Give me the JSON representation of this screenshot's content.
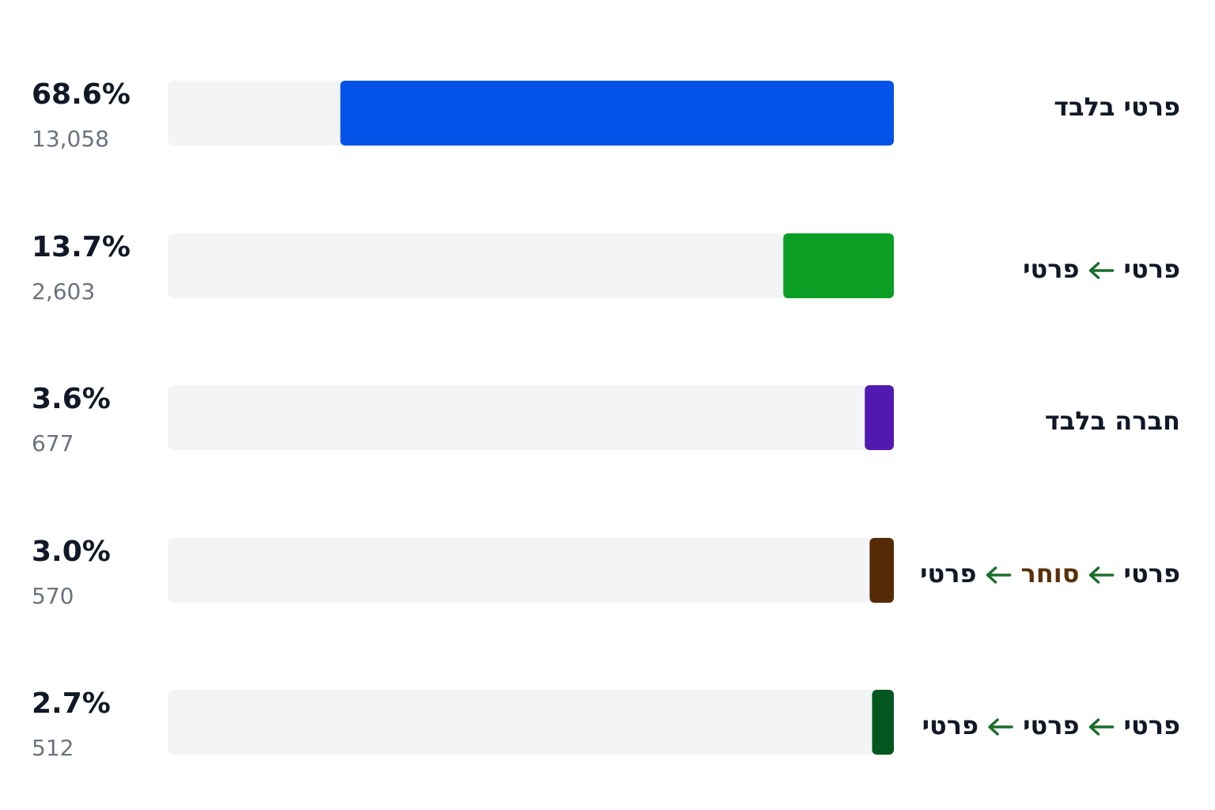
{
  "chart_data": {
    "type": "hbar",
    "categories": [
      [
        "פרטי בלבד"
      ],
      [
        "פרטי",
        "פרטי"
      ],
      [
        "חברה בלבד"
      ],
      [
        "פרטי",
        "סוחר",
        "פרטי"
      ],
      [
        "פרטי",
        "פרטי",
        "פרטי"
      ]
    ],
    "category_colors": [
      [
        "#111827"
      ],
      [
        "#111827",
        "#111827"
      ],
      [
        "#111827"
      ],
      [
        "#111827",
        "#5a3008",
        "#111827"
      ],
      [
        "#111827",
        "#111827",
        "#111827"
      ]
    ],
    "arrow_color": "#1b6e2b",
    "values": [
      68.6,
      13.7,
      3.6,
      3.0,
      2.7
    ],
    "value_labels": [
      "68.6%",
      "13.7%",
      "3.6%",
      "3.0%",
      "2.7%"
    ],
    "counts": [
      13058,
      2603,
      677,
      570,
      512
    ],
    "count_labels": [
      "13,058",
      "2,603",
      "677",
      "570",
      "512"
    ],
    "colors": [
      "#0453e8",
      "#0a9e25",
      "#5219b0",
      "#552a06",
      "#04561f"
    ],
    "track_color": "#f3f4f6",
    "xlim": [
      0,
      90
    ]
  }
}
